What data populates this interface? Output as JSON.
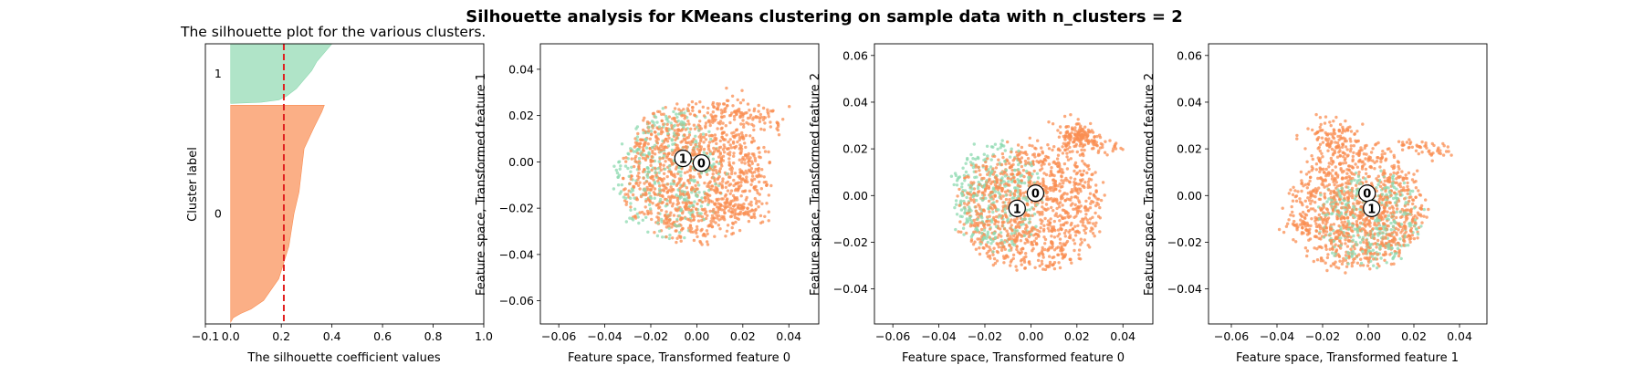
{
  "figure": {
    "suptitle": "Silhouette analysis for KMeans clustering on sample data with n_clusters = 2"
  },
  "colors": {
    "cluster_0": "#f98d52",
    "cluster_1": "#8ed9b0",
    "threshold_line": "#e02020"
  },
  "chart_data": [
    {
      "type": "area",
      "title": "The silhouette plot for the various clusters.",
      "xlabel": "The silhouette coefficient values",
      "ylabel": "Cluster label",
      "xlim": [
        -0.1,
        1.0
      ],
      "xticks": [
        "−0.1",
        "0.0",
        "0.2",
        "0.4",
        "0.6",
        "0.8",
        "1.0"
      ],
      "xtick_values": [
        -0.1,
        0.0,
        0.2,
        0.4,
        0.6,
        0.8,
        1.0
      ],
      "ylim": [
        0,
        1550
      ],
      "clusters": [
        {
          "label": "0",
          "y_start": 10,
          "size": 1200,
          "profile": [
            [
              0,
              0.0
            ],
            [
              0.02,
              0.01
            ],
            [
              0.04,
              0.04
            ],
            [
              0.06,
              0.08
            ],
            [
              0.1,
              0.13
            ],
            [
              0.2,
              0.19
            ],
            [
              0.35,
              0.23
            ],
            [
              0.5,
              0.25
            ],
            [
              0.6,
              0.27
            ],
            [
              0.7,
              0.28
            ],
            [
              0.8,
              0.29
            ],
            [
              0.9,
              0.33
            ],
            [
              0.97,
              0.36
            ],
            [
              1.0,
              0.37
            ]
          ]
        },
        {
          "label": "1",
          "y_start": 1220,
          "size": 330,
          "profile": [
            [
              0,
              0.0
            ],
            [
              0.02,
              0.12
            ],
            [
              0.06,
              0.19
            ],
            [
              0.12,
              0.22
            ],
            [
              0.25,
              0.26
            ],
            [
              0.4,
              0.29
            ],
            [
              0.55,
              0.32
            ],
            [
              0.7,
              0.34
            ],
            [
              0.85,
              0.37
            ],
            [
              0.95,
              0.39
            ],
            [
              1.0,
              0.4
            ]
          ]
        }
      ],
      "silhouette_avg": 0.21
    },
    {
      "type": "scatter",
      "xlabel": "Feature space, Transformed feature 0",
      "ylabel": "Feature space, Transformed feature 1",
      "xlim": [
        -0.068,
        0.053
      ],
      "ylim": [
        -0.07,
        0.051
      ],
      "xticks": [
        "−0.06",
        "−0.04",
        "−0.02",
        "0.00",
        "0.02",
        "0.04"
      ],
      "xtick_values": [
        -0.06,
        -0.04,
        -0.02,
        0.0,
        0.02,
        0.04
      ],
      "yticks": [
        "−0.06",
        "−0.04",
        "−0.02",
        "0.00",
        "0.02",
        "0.04"
      ],
      "ytick_values": [
        -0.06,
        -0.04,
        -0.02,
        0.0,
        0.02,
        0.04
      ],
      "centers": [
        {
          "label": "0",
          "x": 0.002,
          "y": -0.0005
        },
        {
          "label": "1",
          "x": -0.006,
          "y": 0.0015
        }
      ],
      "clouds": [
        {
          "cluster": 0,
          "kind": "blob",
          "cx": 0.0,
          "cy": -0.005,
          "rx": 0.055,
          "ry": 0.052,
          "n": 1150
        },
        {
          "cluster": 0,
          "kind": "streak",
          "x0": 0.01,
          "y0": 0.026,
          "x1": 0.035,
          "y1": 0.016,
          "spread": 0.003,
          "n": 90
        },
        {
          "cluster": 0,
          "kind": "streak",
          "x0": 0.005,
          "y0": -0.015,
          "x1": 0.03,
          "y1": -0.025,
          "spread": 0.002,
          "n": 50
        },
        {
          "cluster": 1,
          "kind": "blob",
          "cx": -0.012,
          "cy": -0.005,
          "rx": 0.042,
          "ry": 0.05,
          "n": 340
        }
      ]
    },
    {
      "type": "scatter",
      "xlabel": "Feature space, Transformed feature 0",
      "ylabel": "Feature space, Transformed feature 2",
      "xlim": [
        -0.068,
        0.053
      ],
      "ylim": [
        -0.055,
        0.065
      ],
      "xticks": [
        "−0.06",
        "−0.04",
        "−0.02",
        "0.00",
        "0.02",
        "0.04"
      ],
      "xtick_values": [
        -0.06,
        -0.04,
        -0.02,
        0.0,
        0.02,
        0.04
      ],
      "yticks": [
        "−0.04",
        "−0.02",
        "0.00",
        "0.02",
        "0.04",
        "0.06"
      ],
      "ytick_values": [
        -0.04,
        -0.02,
        0.0,
        0.02,
        0.04,
        0.06
      ],
      "centers": [
        {
          "label": "0",
          "x": 0.002,
          "y": 0.001
        },
        {
          "label": "1",
          "x": -0.006,
          "y": -0.0055
        }
      ],
      "clouds": [
        {
          "cluster": 0,
          "kind": "blob",
          "cx": 0.0,
          "cy": -0.005,
          "rx": 0.055,
          "ry": 0.048,
          "n": 1050
        },
        {
          "cluster": 0,
          "kind": "cluster",
          "cx": 0.02,
          "cy": 0.025,
          "rx": 0.01,
          "ry": 0.008,
          "n": 130
        },
        {
          "cluster": 0,
          "kind": "streak",
          "x0": 0.018,
          "y0": 0.026,
          "x1": 0.038,
          "y1": 0.02,
          "spread": 0.0015,
          "n": 60
        },
        {
          "cluster": 1,
          "kind": "blob",
          "cx": -0.015,
          "cy": 0.0,
          "rx": 0.035,
          "ry": 0.04,
          "n": 340
        }
      ]
    },
    {
      "type": "scatter",
      "xlabel": "Feature space, Transformed feature 1",
      "ylabel": "Feature space, Transformed feature 2",
      "xlim": [
        -0.07,
        0.052
      ],
      "ylim": [
        -0.055,
        0.065
      ],
      "xticks": [
        "−0.06",
        "−0.04",
        "−0.02",
        "0.00",
        "0.02",
        "0.04"
      ],
      "xtick_values": [
        -0.06,
        -0.04,
        -0.02,
        0.0,
        0.02,
        0.04
      ],
      "yticks": [
        "−0.04",
        "−0.02",
        "0.00",
        "0.02",
        "0.04",
        "0.06"
      ],
      "ytick_values": [
        -0.04,
        -0.02,
        0.0,
        0.02,
        0.04,
        0.06
      ],
      "centers": [
        {
          "label": "0",
          "x": -0.0005,
          "y": 0.001
        },
        {
          "label": "1",
          "x": 0.0015,
          "y": -0.0055
        }
      ],
      "clouds": [
        {
          "cluster": 0,
          "kind": "blob",
          "cx": -0.005,
          "cy": -0.005,
          "rx": 0.052,
          "ry": 0.048,
          "n": 1050
        },
        {
          "cluster": 0,
          "kind": "cluster",
          "cx": -0.015,
          "cy": 0.025,
          "rx": 0.012,
          "ry": 0.008,
          "n": 110
        },
        {
          "cluster": 0,
          "kind": "streak",
          "x0": 0.015,
          "y0": 0.022,
          "x1": 0.035,
          "y1": 0.018,
          "spread": 0.0015,
          "n": 50
        },
        {
          "cluster": 0,
          "kind": "streak",
          "x0": -0.045,
          "y0": -0.015,
          "x1": 0.01,
          "y1": -0.005,
          "spread": 0.002,
          "n": 60
        },
        {
          "cluster": 1,
          "kind": "blob",
          "cx": 0.0,
          "cy": -0.01,
          "rx": 0.04,
          "ry": 0.035,
          "n": 340
        }
      ]
    }
  ]
}
